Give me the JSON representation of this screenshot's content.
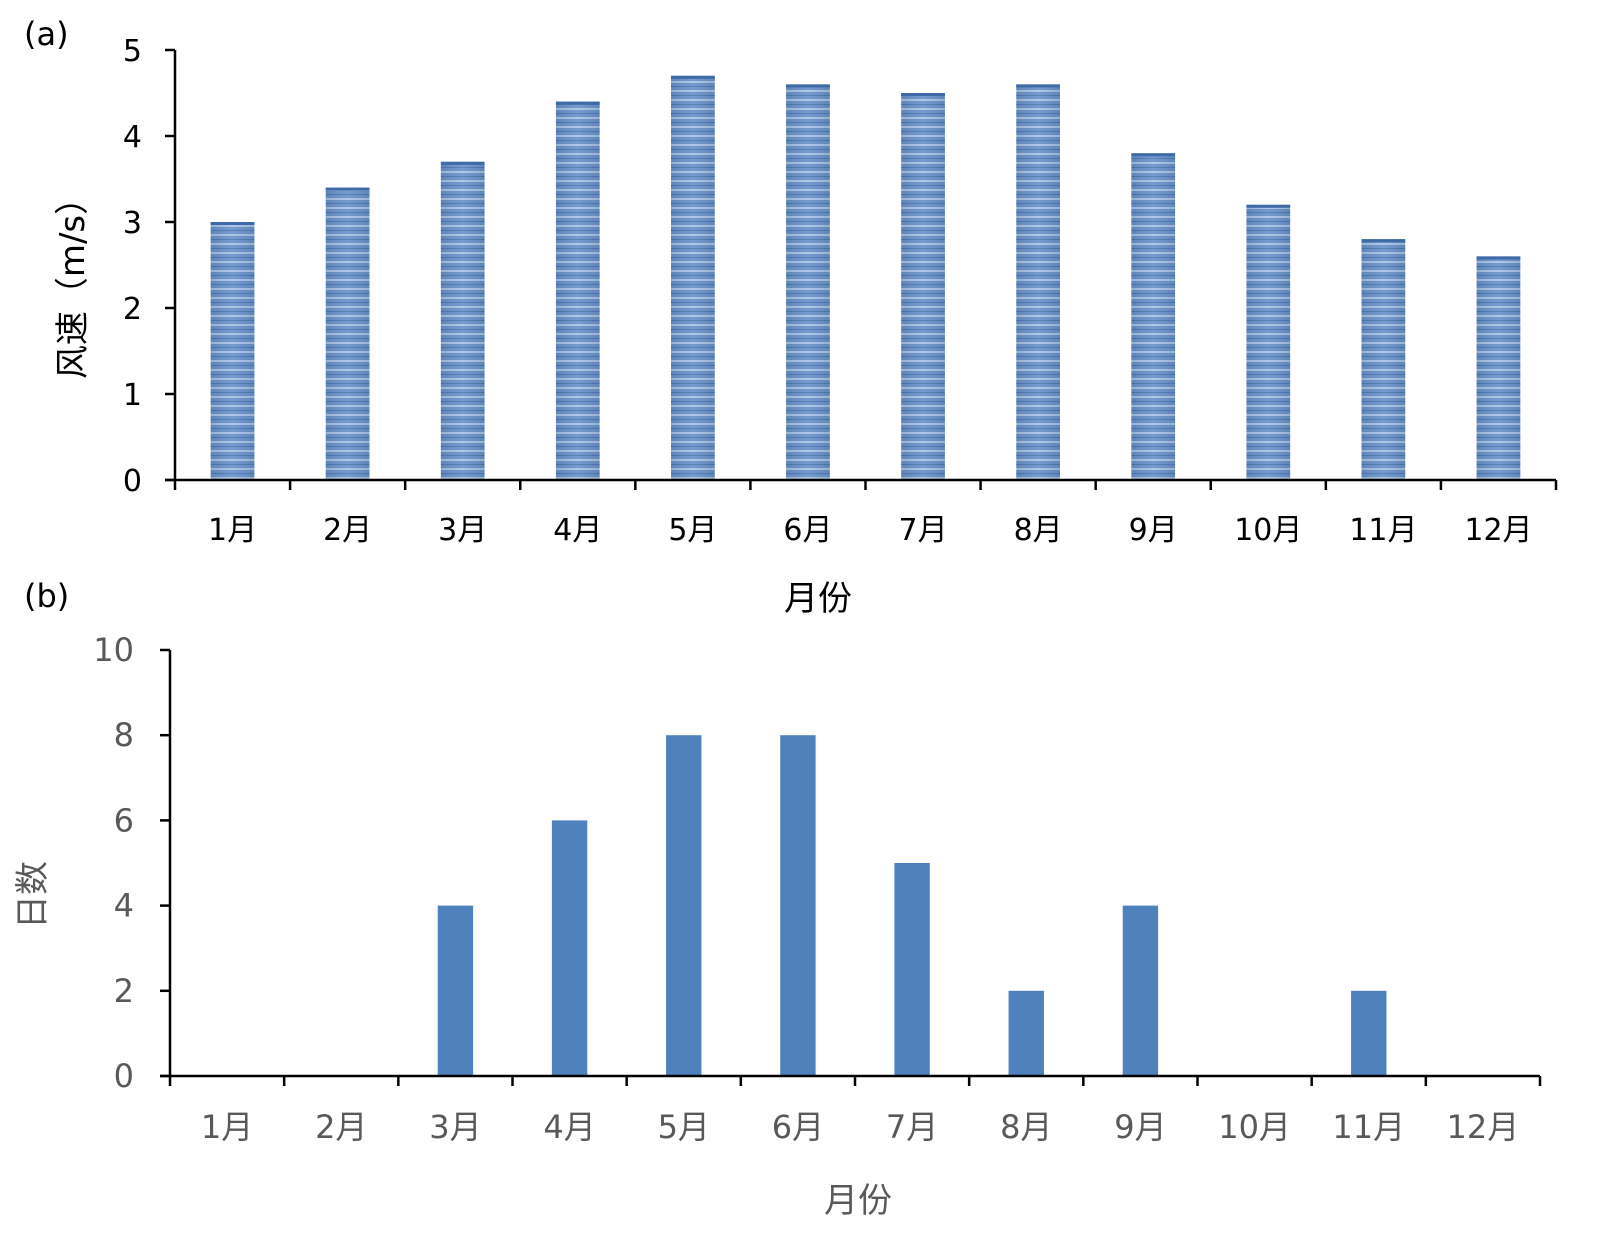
{
  "chart_data": [
    {
      "panel_label": "(a)",
      "type": "bar",
      "categories": [
        "1月",
        "2月",
        "3月",
        "4月",
        "5月",
        "6月",
        "7月",
        "8月",
        "9月",
        "10月",
        "11月",
        "12月"
      ],
      "values": [
        3.0,
        3.4,
        3.7,
        4.4,
        4.7,
        4.6,
        4.5,
        4.6,
        3.8,
        3.2,
        2.8,
        2.6
      ],
      "xlabel": "月份",
      "ylabel": "风速（m/s）",
      "ylim": [
        0,
        5
      ],
      "yticks": [
        "0",
        "1",
        "2",
        "3",
        "4",
        "5"
      ],
      "grid": false,
      "bar_color": "#5b86c2",
      "bar_fill": "horizontal stripes"
    },
    {
      "panel_label": "(b)",
      "type": "bar",
      "categories": [
        "1月",
        "2月",
        "3月",
        "4月",
        "5月",
        "6月",
        "7月",
        "8月",
        "9月",
        "10月",
        "11月",
        "12月"
      ],
      "values": [
        0,
        0,
        4,
        6,
        8,
        8,
        5,
        2,
        4,
        0,
        2,
        0
      ],
      "xlabel": "月份",
      "ylabel": "日数",
      "ylim": [
        0,
        10
      ],
      "yticks": [
        "0",
        "2",
        "4",
        "6",
        "8",
        "10"
      ],
      "grid": false,
      "bar_color": "#4f81bd"
    }
  ]
}
